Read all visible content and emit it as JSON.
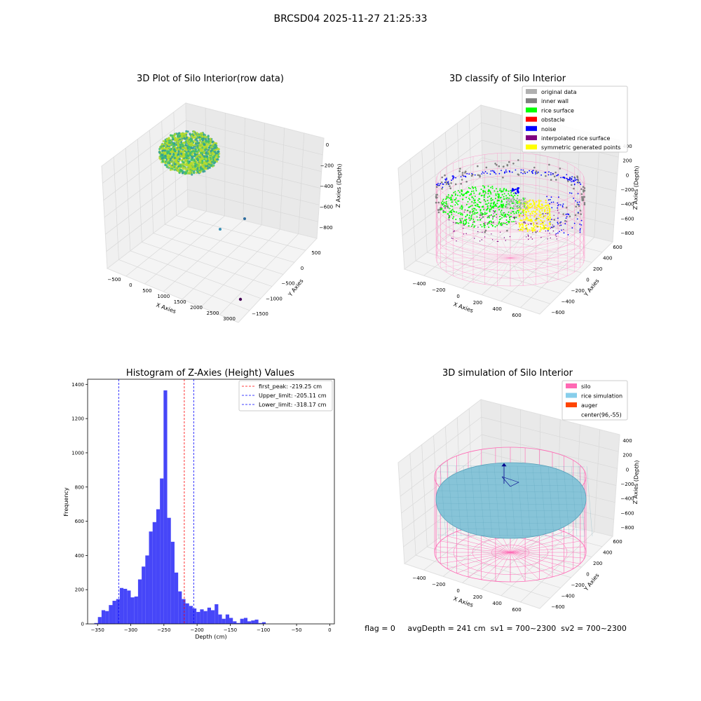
{
  "suptitle": "BRCSD04 2025-11-27 21:25:33",
  "panels": {
    "raw": {
      "title": "3D Plot of Silo Interior(row data)",
      "xlabel": "X Axies",
      "ylabel": "Y Axies",
      "zlabel": "Z Axies (Depth)",
      "xticks": [
        "−500",
        "0",
        "500",
        "1000",
        "1500",
        "2000",
        "2500",
        "3000"
      ],
      "yticks": [
        "500",
        "0",
        "−500",
        "−1000",
        "−1500"
      ],
      "zticks": [
        "0",
        "−200",
        "−400",
        "−600",
        "−800"
      ],
      "colors": {
        "cloud_a": "#b5d92c",
        "cloud_b": "#3fbf6f",
        "cloud_c": "#2f9c9a",
        "outlier_a": "#3b91b5",
        "outlier_b": "#2d6c9e",
        "outlier_c": "#440154"
      }
    },
    "classify": {
      "title": "3D classify of Silo Interior",
      "xlabel": "X Axies",
      "ylabel": "Y Axies",
      "zlabel": "Z Axies (Depth)",
      "xticks": [
        "−400",
        "−200",
        "0",
        "200",
        "400",
        "600"
      ],
      "yticks": [
        "600",
        "400",
        "200",
        "0",
        "−200",
        "−400",
        "−600"
      ],
      "zticks": [
        "400",
        "200",
        "0",
        "−200",
        "−400",
        "−600",
        "−800"
      ],
      "legend": [
        {
          "label": "original data",
          "color": "#b0b0b0"
        },
        {
          "label": "inner wall",
          "color": "#808080"
        },
        {
          "label": "rice surface",
          "color": "#00ff00"
        },
        {
          "label": "obstacle",
          "color": "#ff0000"
        },
        {
          "label": "noise",
          "color": "#0000ff"
        },
        {
          "label": "interpolated rice surface",
          "color": "#800080"
        },
        {
          "label": "symmetric generated points",
          "color": "#ffff00"
        }
      ],
      "colors": {
        "cylinder": "#ff80c0"
      }
    },
    "sim": {
      "title": "3D simulation of Silo Interior",
      "xlabel": "X Axies",
      "ylabel": "Y Axies",
      "zlabel": "Z Axies (Depth)",
      "xticks": [
        "−400",
        "−200",
        "0",
        "200",
        "400",
        "600"
      ],
      "yticks": [
        "600",
        "400",
        "200",
        "0",
        "−200",
        "−400",
        "−600"
      ],
      "zticks": [
        "400",
        "200",
        "0",
        "−200",
        "−400",
        "−600",
        "−800"
      ],
      "legend": [
        {
          "label": "silo",
          "color": "#ff69b4"
        },
        {
          "label": "rice simulation",
          "color": "#87ceeb"
        },
        {
          "label": "auger",
          "color": "#ff4500"
        },
        {
          "label": "center(96,-55)",
          "color": ""
        }
      ],
      "colors": {
        "surface": "#87c4d8",
        "mesh": "#5aa2ba",
        "silo": "#ff69b4",
        "auger": "#00008b"
      }
    }
  },
  "status_text": "flag = 0     avgDepth = 241 cm  sv1 = 700~2300  sv2 = 700~2300",
  "chart_data": {
    "type": "bar",
    "title": "Histogram of Z-Axies (Height) Values",
    "xlabel": "Depth (cm)",
    "ylabel": "Frequency",
    "xlim": [
      -365,
      7
    ],
    "ylim": [
      0,
      1430
    ],
    "xticks": [
      "−350",
      "−300",
      "−250",
      "−200",
      "−150",
      "−100",
      "−50",
      "0"
    ],
    "xtick_values": [
      -350,
      -300,
      -250,
      -200,
      -150,
      -100,
      -50,
      0
    ],
    "yticks": [
      "0",
      "200",
      "400",
      "600",
      "800",
      "1000",
      "1200",
      "1400"
    ],
    "ytick_values": [
      0,
      200,
      400,
      600,
      800,
      1000,
      1200,
      1400
    ],
    "bar_color": "#4646f8",
    "bin_start": -355,
    "bin_width": 5.5,
    "values": [
      5,
      40,
      80,
      75,
      110,
      135,
      145,
      210,
      205,
      195,
      155,
      160,
      260,
      335,
      400,
      540,
      595,
      670,
      850,
      1365,
      620,
      480,
      300,
      190,
      145,
      120,
      105,
      90,
      70,
      85,
      75,
      95,
      80,
      115,
      55,
      30,
      55,
      35,
      15,
      5,
      30,
      35,
      15,
      20,
      25,
      5,
      10
    ],
    "vlines": [
      {
        "label": "first_peak: -219.25 cm",
        "value": -219.25,
        "color": "#ff0000"
      },
      {
        "label": "Upper_limit: -205.11 cm",
        "value": -205.11,
        "color": "#0000ff"
      },
      {
        "label": "Lower_limit: -318.17 cm",
        "value": -318.17,
        "color": "#0000ff"
      }
    ],
    "legend_position": "upper-right"
  }
}
